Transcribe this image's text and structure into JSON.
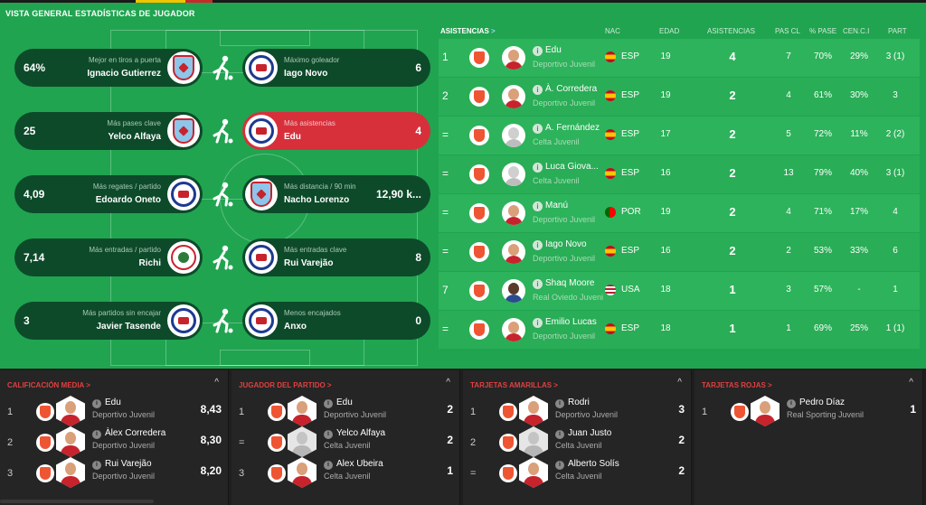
{
  "header": {
    "title": "VISTA GENERAL ESTADÍSTICAS DE JUGADOR"
  },
  "stats": [
    {
      "side": "left",
      "value": "64%",
      "label": "Mejor en tiros a puerta",
      "name": "Ignacio Gutierrez",
      "crest": "celta",
      "icon": "shooting-player-icon"
    },
    {
      "side": "right",
      "value": "6",
      "label": "Máximo goleador",
      "name": "Iago Novo",
      "crest": "depor"
    },
    {
      "side": "left",
      "value": "25",
      "label": "Más pases clave",
      "name": "Yelco Alfaya",
      "crest": "celta",
      "icon": "passing-player-icon"
    },
    {
      "side": "right",
      "value": "4",
      "label": "Más asistencias",
      "name": "Edu",
      "crest": "depor",
      "highlight": true
    },
    {
      "side": "left",
      "value": "4,09",
      "label": "Más regates / partido",
      "name": "Edoardo Oneto",
      "crest": "depor",
      "icon": "dribbling-player-icon"
    },
    {
      "side": "right",
      "value": "12,90 k...",
      "label": "Más distancia / 90 min",
      "name": "Nacho Lorenzo",
      "crest": "celta"
    },
    {
      "side": "left",
      "value": "7,14",
      "label": "Más entradas / partido",
      "name": "Richi",
      "crest": "richi",
      "icon": "tackling-player-icon"
    },
    {
      "side": "right",
      "value": "8",
      "label": "Más entradas clave",
      "name": "Rui Varejão",
      "crest": "depor"
    },
    {
      "side": "left",
      "value": "3",
      "label": "Más partidos sin encajar",
      "name": "Javier Tasende",
      "crest": "depor",
      "icon": "diving-keeper-icon"
    },
    {
      "side": "right",
      "value": "0",
      "label": "Menos encajados",
      "name": "Anxo",
      "crest": "depor"
    }
  ],
  "table": {
    "tab": "ASISTENCIAS",
    "tab_chevron": ">",
    "columns": {
      "nat": "NAC",
      "age": "EDAD",
      "ast": "ASISTENCIAS",
      "pas": "PAS CL",
      "pct": "% PASE",
      "cen": "CEN.C.I",
      "par": "PART"
    },
    "rows": [
      {
        "rank": "1",
        "name": "Edu",
        "club": "Deportivo Juvenil",
        "nat": "ESP",
        "flag": "esp",
        "age": "19",
        "ast": "4",
        "pas": "7",
        "pct": "70%",
        "cen": "29%",
        "par": "3 (1)",
        "face": "red"
      },
      {
        "rank": "2",
        "name": "À. Corredera",
        "club": "Deportivo Juvenil",
        "nat": "ESP",
        "flag": "esp",
        "age": "19",
        "ast": "2",
        "pas": "4",
        "pct": "61%",
        "cen": "30%",
        "par": "3",
        "face": "red"
      },
      {
        "rank": "=",
        "name": "A. Fernández",
        "club": "Celta Juvenil",
        "nat": "ESP",
        "flag": "esp",
        "age": "17",
        "ast": "2",
        "pas": "5",
        "pct": "72%",
        "cen": "11%",
        "par": "2 (2)",
        "face": "grey"
      },
      {
        "rank": "=",
        "name": "Luca Giova...",
        "club": "Celta Juvenil",
        "nat": "ESP",
        "flag": "esp",
        "age": "16",
        "ast": "2",
        "pas": "13",
        "pct": "79%",
        "cen": "40%",
        "par": "3 (1)",
        "face": "grey"
      },
      {
        "rank": "=",
        "name": "Manú",
        "club": "Deportivo Juvenil",
        "nat": "POR",
        "flag": "por",
        "age": "19",
        "ast": "2",
        "pas": "4",
        "pct": "71%",
        "cen": "17%",
        "par": "4",
        "face": "red"
      },
      {
        "rank": "=",
        "name": "Iago Novo",
        "club": "Deportivo Juvenil",
        "nat": "ESP",
        "flag": "esp",
        "age": "16",
        "ast": "2",
        "pas": "2",
        "pct": "53%",
        "cen": "33%",
        "par": "6",
        "face": "red"
      },
      {
        "rank": "7",
        "name": "Shaq Moore",
        "club": "Real Oviedo Juvenil",
        "nat": "USA",
        "flag": "usa",
        "age": "18",
        "ast": "1",
        "pas": "3",
        "pct": "57%",
        "cen": "-",
        "par": "1",
        "face": "dark"
      },
      {
        "rank": "=",
        "name": "Emilio Lucas",
        "club": "Deportivo Juvenil",
        "nat": "ESP",
        "flag": "esp",
        "age": "18",
        "ast": "1",
        "pas": "1",
        "pct": "69%",
        "cen": "25%",
        "par": "1 (1)",
        "face": "red"
      }
    ]
  },
  "panels": [
    {
      "title": "CALIFICACIÓN MEDIA >",
      "items": [
        {
          "rank": "1",
          "name": "Edu",
          "club": "Deportivo Juvenil",
          "value": "8,43",
          "face": "red"
        },
        {
          "rank": "2",
          "name": "Àlex Corredera",
          "club": "Deportivo Juvenil",
          "value": "8,30",
          "face": "red"
        },
        {
          "rank": "3",
          "name": "Rui Varejão",
          "club": "Deportivo Juvenil",
          "value": "8,20",
          "face": "red"
        }
      ]
    },
    {
      "title": "JUGADOR DEL PARTIDO >",
      "items": [
        {
          "rank": "1",
          "name": "Edu",
          "club": "Deportivo Juvenil",
          "value": "2",
          "face": "red"
        },
        {
          "rank": "=",
          "name": "Yelco Alfaya",
          "club": "Celta Juvenil",
          "value": "2",
          "face": "grey"
        },
        {
          "rank": "3",
          "name": "Alex Ubeira",
          "club": "Celta Juvenil",
          "value": "1",
          "face": "red"
        }
      ]
    },
    {
      "title": "TARJETAS AMARILLAS >",
      "items": [
        {
          "rank": "1",
          "name": "Rodri",
          "club": "Deportivo Juvenil",
          "value": "3",
          "face": "red"
        },
        {
          "rank": "2",
          "name": "Juan Justo",
          "club": "Celta Juvenil",
          "value": "2",
          "face": "grey"
        },
        {
          "rank": "=",
          "name": "Alberto Solís",
          "club": "Celta Juvenil",
          "value": "2",
          "face": "red"
        }
      ]
    },
    {
      "title": "TARJETAS ROJAS >",
      "items": [
        {
          "rank": "1",
          "name": "Pedro Díaz",
          "club": "Real Sporting Juvenil",
          "value": "1",
          "face": "red"
        }
      ]
    }
  ],
  "ui": {
    "collapse_glyph": "^",
    "info_glyph": "i"
  }
}
